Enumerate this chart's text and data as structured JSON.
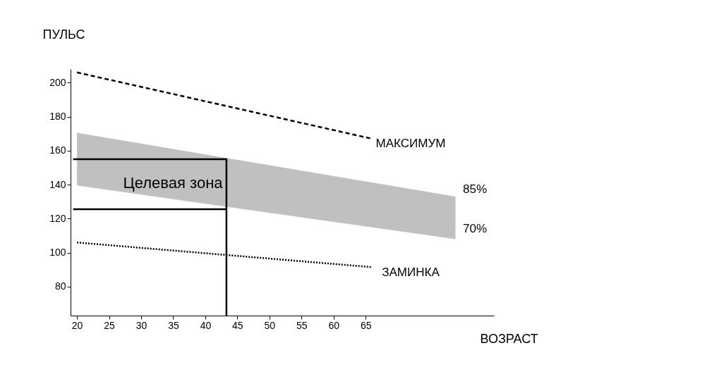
{
  "chart_data": {
    "type": "line",
    "xlabel": "ВОЗРАСТ",
    "ylabel": "ПУЛЬС",
    "xlim": [
      19,
      85
    ],
    "ylim": [
      63,
      208
    ],
    "xticks": [
      20,
      25,
      30,
      35,
      40,
      45,
      50,
      55,
      60,
      65
    ],
    "yticks": [
      80,
      100,
      120,
      140,
      160,
      180,
      200
    ],
    "grid": false,
    "marker": "none",
    "series": [
      {
        "type": "area",
        "color": "#c0c0c0",
        "x": [
          20,
          79
        ],
        "values": [
          null,
          null
        ],
        "lower": [
          139.5,
          108
        ],
        "upper": [
          170.5,
          133
        ]
      },
      {
        "color": "#000000",
        "line_style": "dashed",
        "x": [
          20,
          66
        ],
        "values": [
          206,
          167
        ]
      },
      {
        "color": "#000000",
        "line_style": "dotted",
        "x": [
          20,
          66
        ],
        "values": [
          106,
          91.5
        ]
      },
      {
        "color": "#000000",
        "line_style": "solid",
        "x": [
          19.4,
          43.3,
          43.3
        ],
        "values": [
          155,
          155,
          63
        ]
      },
      {
        "color": "#000000",
        "line_style": "solid",
        "x": [
          19.4,
          43.3
        ],
        "values": [
          125.6,
          125.6
        ]
      }
    ],
    "annotations": [
      "МАКСИМУМ",
      "85%",
      "70%",
      "ЗАМИНКА",
      "Целевая зона"
    ]
  }
}
